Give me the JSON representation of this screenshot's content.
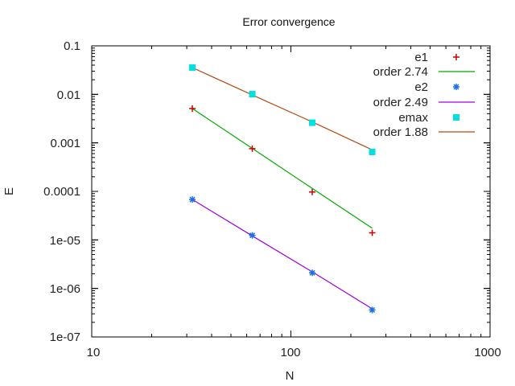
{
  "chart_data": {
    "type": "line",
    "title": "Error convergence",
    "xlabel": "N",
    "ylabel": "E",
    "xscale": "log",
    "yscale": "log",
    "xlim": [
      10,
      1000
    ],
    "ylim": [
      1e-07,
      0.1
    ],
    "x_ticks": [
      "10",
      "100",
      "1000"
    ],
    "y_ticks": [
      "0.1",
      "0.01",
      "0.001",
      "0.0001",
      "1e-05",
      "1e-06",
      "1e-07"
    ],
    "grid": false,
    "legend_position": "top-right inside",
    "x": [
      32,
      64,
      128,
      256
    ],
    "series": [
      {
        "name": "e1",
        "style": "points",
        "marker": "+",
        "color": "#cc0000",
        "values": [
          0.0051,
          0.00076,
          9.7e-05,
          1.4e-05
        ]
      },
      {
        "name": "order 2.74",
        "style": "line",
        "color": "#00aa00",
        "values": [
          0.0051,
          0.00077,
          0.000115,
          1.75e-05
        ]
      },
      {
        "name": "e2",
        "style": "points",
        "marker": "*",
        "color": "#1a6ee6",
        "values": [
          6.8e-05,
          1.24e-05,
          2.1e-06,
          3.6e-07
        ]
      },
      {
        "name": "order 2.49",
        "style": "line",
        "color": "#a000e0",
        "values": [
          6.8e-05,
          1.21e-05,
          2.2e-06,
          3.8e-07
        ]
      },
      {
        "name": "emax",
        "style": "points",
        "marker": "square",
        "color": "#00e0e0",
        "values": [
          0.0356,
          0.0101,
          0.0026,
          0.00065
        ]
      },
      {
        "name": "order 1.88",
        "style": "line",
        "color": "#b84a10",
        "values": [
          0.0356,
          0.0097,
          0.0027,
          0.00072
        ]
      }
    ]
  },
  "labels": {
    "title": "Error convergence",
    "xlabel": "N",
    "ylabel": "E",
    "xticks": [
      "10",
      "100",
      "1000"
    ],
    "yticks": [
      "0.1",
      "0.01",
      "0.001",
      "0.0001",
      "1e-05",
      "1e-06",
      "1e-07"
    ],
    "legend": [
      "e1",
      "order 2.74",
      "e2",
      "order 2.49",
      "emax",
      "order 1.88"
    ]
  }
}
